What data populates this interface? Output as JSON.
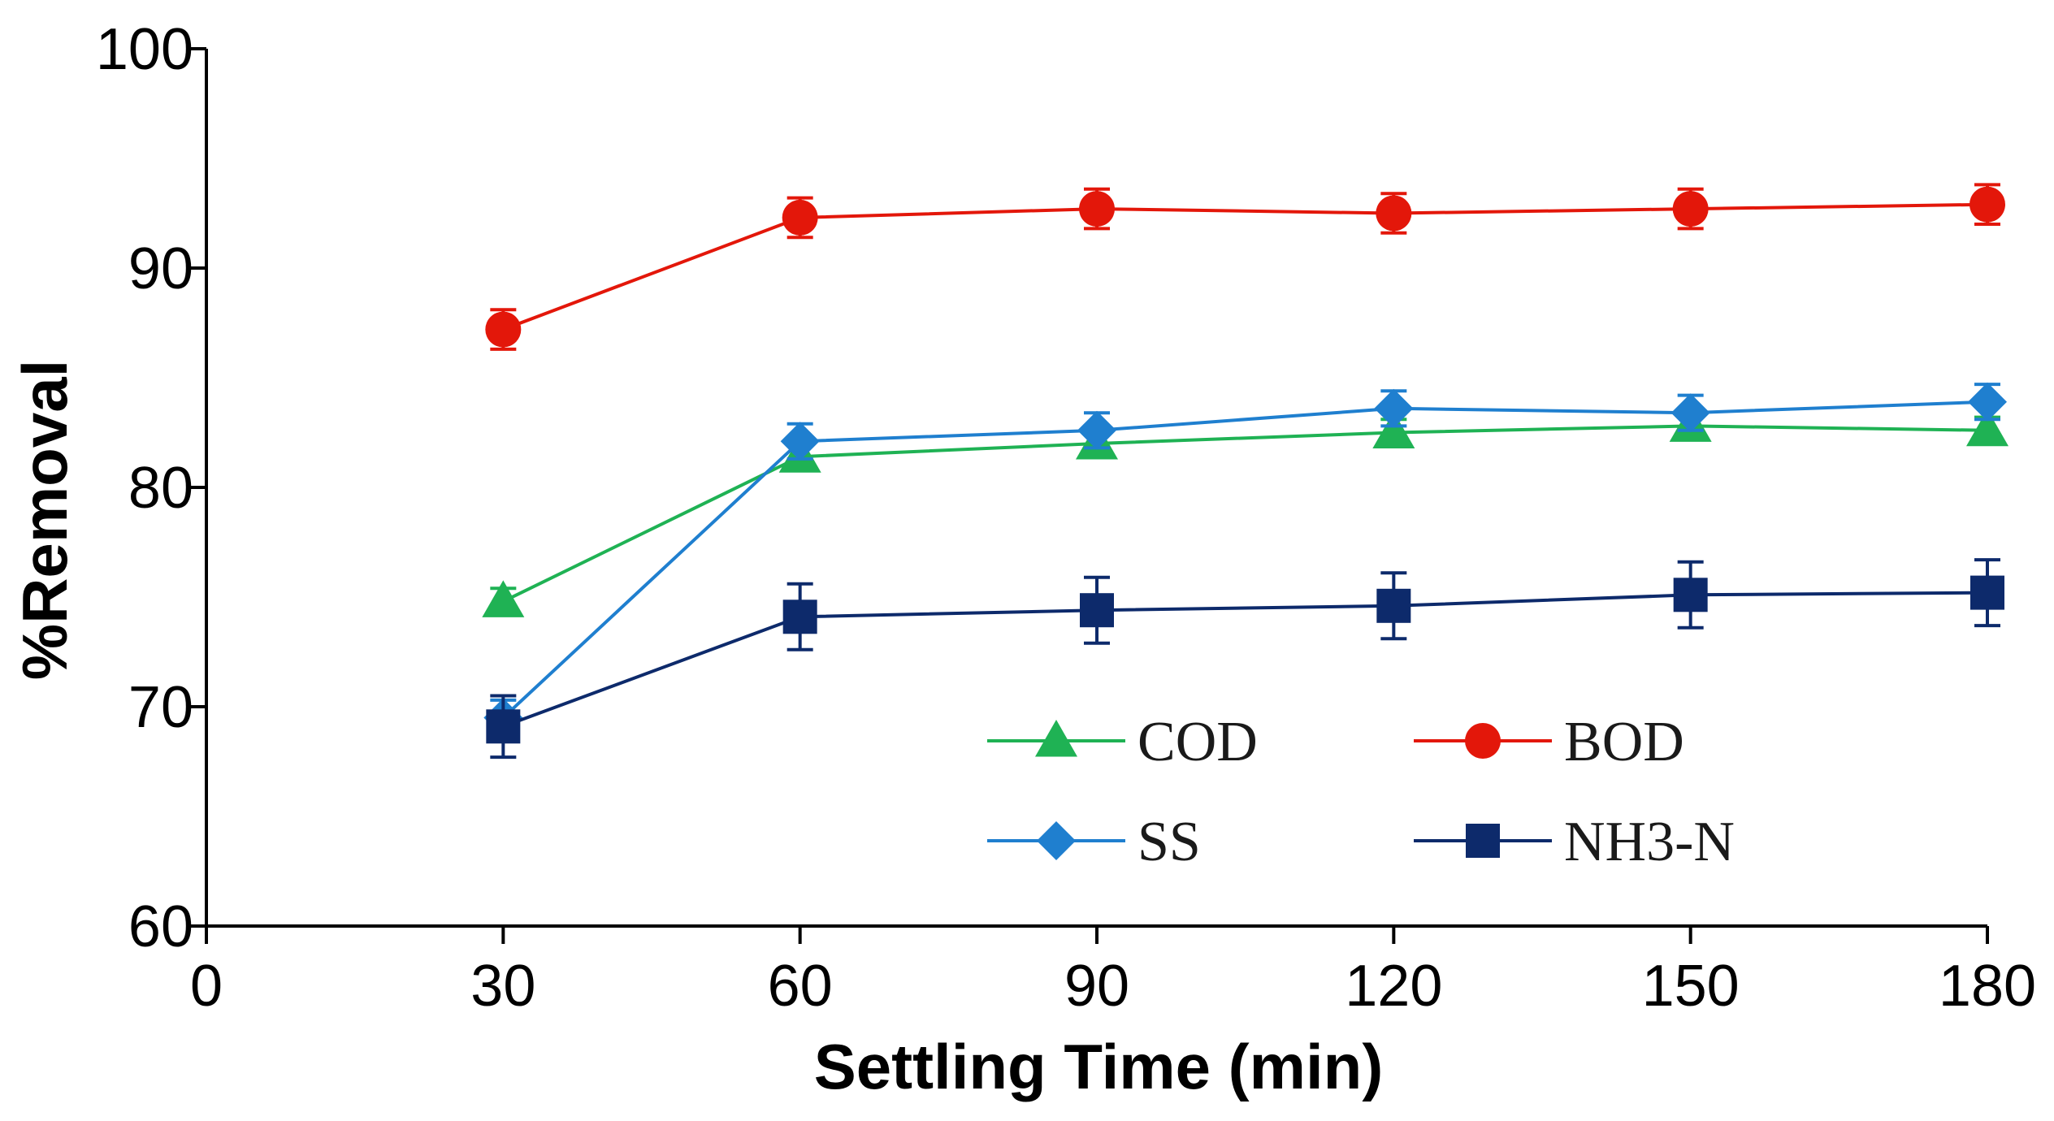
{
  "chart_data": {
    "type": "line",
    "title": "",
    "xlabel": "Settling Time (min)",
    "ylabel": "%Removal",
    "xlim": [
      0,
      180
    ],
    "ylim": [
      60,
      100
    ],
    "xticks": [
      0,
      30,
      60,
      90,
      120,
      150,
      180
    ],
    "yticks": [
      60,
      70,
      80,
      90,
      100
    ],
    "grid": false,
    "legend_position": "bottom-right",
    "x": [
      30,
      60,
      90,
      120,
      150,
      180
    ],
    "series": [
      {
        "name": "COD",
        "marker": "triangle",
        "color": "#1fb254",
        "values": [
          74.8,
          81.4,
          82.0,
          82.5,
          82.8,
          82.6
        ],
        "errors": [
          0.6,
          0.6,
          0.6,
          0.6,
          0.6,
          0.6
        ]
      },
      {
        "name": "BOD",
        "marker": "circle",
        "color": "#e3170a",
        "values": [
          87.2,
          92.3,
          92.7,
          92.5,
          92.7,
          92.9
        ],
        "errors": [
          0.9,
          0.9,
          0.9,
          0.9,
          0.9,
          0.9
        ]
      },
      {
        "name": "SS",
        "marker": "diamond",
        "color": "#1f7fcf",
        "values": [
          69.5,
          82.1,
          82.6,
          83.6,
          83.4,
          83.9
        ],
        "errors": [
          0.8,
          0.8,
          0.8,
          0.8,
          0.8,
          0.8
        ]
      },
      {
        "name": "NH3-N",
        "marker": "square",
        "color": "#0d2a6b",
        "values": [
          69.1,
          74.1,
          74.4,
          74.6,
          75.1,
          75.2
        ],
        "errors": [
          1.4,
          1.5,
          1.5,
          1.5,
          1.5,
          1.5
        ]
      }
    ]
  }
}
